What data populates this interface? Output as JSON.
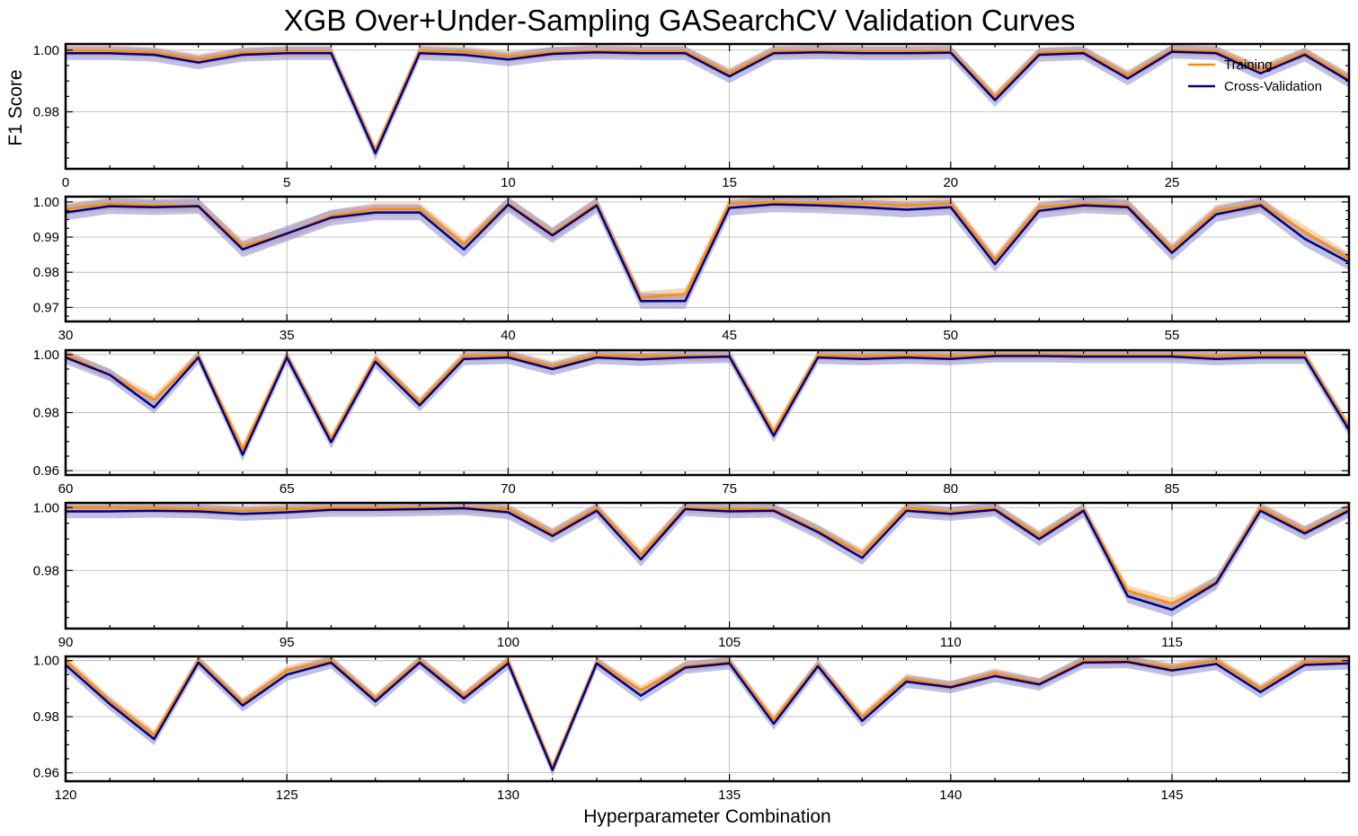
{
  "chart_data": {
    "type": "line",
    "title": "XGB Over+Under-Sampling GASearchCV Validation Curves",
    "xlabel": "Hyperparameter Combination",
    "ylabel": "F1 Score",
    "grid": true,
    "legend": {
      "position": "upper-right",
      "entries": [
        "Training",
        "Cross-Validation"
      ]
    },
    "colors": {
      "training": "#ff8c00",
      "cv": "#000080",
      "training_band": "#f4b77a",
      "cv_band": "#8c8cd0"
    },
    "series_names": [
      "Training",
      "Cross-Validation"
    ],
    "panels": [
      {
        "xlim": [
          0,
          29
        ],
        "ylim": [
          0.9615,
          1.002
        ],
        "xticks": [
          0,
          5,
          10,
          15,
          20,
          25
        ],
        "yticks": [
          0.98,
          1.0
        ],
        "yticklabels": [
          "0.98",
          "1.00"
        ],
        "x_start": 0,
        "training": [
          1.0,
          0.9998,
          0.9993,
          0.997,
          0.9992,
          0.9995,
          0.9995,
          0.9675,
          0.9998,
          0.9995,
          0.998,
          0.9993,
          0.9998,
          0.9996,
          0.9996,
          0.9925,
          0.9997,
          0.9998,
          0.9996,
          0.9996,
          0.9997,
          0.9848,
          0.9992,
          0.9996,
          0.9918,
          1.0,
          0.9997,
          0.9935,
          0.9992,
          0.991
        ],
        "cv": [
          0.999,
          0.999,
          0.9985,
          0.996,
          0.9985,
          0.999,
          0.999,
          0.9665,
          0.999,
          0.9985,
          0.997,
          0.9988,
          0.9993,
          0.999,
          0.999,
          0.9915,
          0.999,
          0.9993,
          0.999,
          0.999,
          0.9992,
          0.9838,
          0.9985,
          0.999,
          0.9908,
          0.9995,
          0.999,
          0.9925,
          0.9985,
          0.99
        ]
      },
      {
        "xlim": [
          30,
          59
        ],
        "ylim": [
          0.966,
          1.0015
        ],
        "xticks": [
          30,
          35,
          40,
          45,
          50,
          55
        ],
        "yticks": [
          0.97,
          0.98,
          0.99,
          1.0
        ],
        "yticklabels": [
          "0.97",
          "0.98",
          "0.99",
          "1.00"
        ],
        "x_start": 30,
        "training": [
          0.998,
          0.9995,
          0.999,
          0.999,
          0.9875,
          0.991,
          0.996,
          0.998,
          0.998,
          0.988,
          0.9995,
          0.991,
          0.9995,
          0.9728,
          0.9738,
          0.9995,
          1.0,
          0.9995,
          0.9995,
          0.999,
          0.9995,
          0.9835,
          0.9985,
          0.9995,
          0.999,
          0.9865,
          0.9975,
          0.9995,
          0.9915,
          0.9838
        ],
        "cv": [
          0.997,
          0.9988,
          0.9985,
          0.9988,
          0.9865,
          0.991,
          0.9955,
          0.997,
          0.997,
          0.9865,
          0.9992,
          0.9905,
          0.999,
          0.9718,
          0.9718,
          0.9983,
          0.9993,
          0.999,
          0.9985,
          0.9978,
          0.9985,
          0.9823,
          0.9975,
          0.999,
          0.9985,
          0.9855,
          0.9965,
          0.999,
          0.9895,
          0.9828
        ]
      },
      {
        "xlim": [
          60,
          89
        ],
        "ylim": [
          0.9585,
          1.0015
        ],
        "xticks": [
          60,
          65,
          70,
          75,
          80,
          85
        ],
        "yticks": [
          0.96,
          0.98,
          1.0
        ],
        "yticklabels": [
          "0.96",
          "0.98",
          "1.00"
        ],
        "x_start": 60,
        "training": [
          1.0,
          0.993,
          0.9845,
          0.9995,
          0.9675,
          0.9995,
          0.971,
          0.9985,
          0.9835,
          0.9995,
          0.9998,
          0.996,
          0.9998,
          0.9995,
          0.9995,
          0.9995,
          0.9735,
          0.9998,
          0.9995,
          0.9998,
          0.9995,
          1.0,
          1.0,
          0.9998,
          0.9998,
          0.9998,
          0.9995,
          0.9998,
          0.9998,
          0.975
        ],
        "cv": [
          0.999,
          0.993,
          0.9818,
          0.999,
          0.9655,
          0.999,
          0.9698,
          0.9975,
          0.9825,
          0.9985,
          0.999,
          0.995,
          0.999,
          0.9983,
          0.999,
          0.9993,
          0.972,
          0.999,
          0.9985,
          0.999,
          0.9985,
          0.9995,
          0.9995,
          0.9993,
          0.9993,
          0.9993,
          0.9985,
          0.999,
          0.999,
          0.974
        ]
      },
      {
        "xlim": [
          90,
          119
        ],
        "ylim": [
          0.9615,
          1.0015
        ],
        "xticks": [
          90,
          95,
          100,
          105,
          110,
          115
        ],
        "yticks": [
          0.98,
          1.0
        ],
        "yticklabels": [
          "0.98",
          "1.00"
        ],
        "x_start": 90,
        "training": [
          1.0,
          1.0,
          1.0,
          0.9995,
          0.999,
          0.9995,
          1.0,
          1.0,
          1.0,
          1.0,
          0.9995,
          0.9918,
          0.9998,
          0.985,
          1.0,
          0.9995,
          0.9995,
          0.9928,
          0.9853,
          1.0,
          0.9985,
          0.9998,
          0.991,
          0.9995,
          0.9735,
          0.9695,
          0.9763,
          1.0,
          0.9925,
          0.9995
        ],
        "cv": [
          0.9988,
          0.9988,
          0.999,
          0.9988,
          0.998,
          0.9985,
          0.9993,
          0.9993,
          0.9995,
          0.9998,
          0.9985,
          0.991,
          0.999,
          0.9835,
          0.9995,
          0.9988,
          0.999,
          0.9922,
          0.984,
          0.999,
          0.998,
          0.9993,
          0.99,
          0.999,
          0.9718,
          0.9675,
          0.976,
          0.999,
          0.9918,
          0.999
        ]
      },
      {
        "xlim": [
          120,
          149
        ],
        "ylim": [
          0.957,
          1.0015
        ],
        "xticks": [
          120,
          125,
          130,
          135,
          140,
          145
        ],
        "yticks": [
          0.96,
          0.98,
          1.0
        ],
        "yticklabels": [
          "0.96",
          "0.98",
          "1.00"
        ],
        "x_start": 120,
        "training": [
          1.0,
          0.9855,
          0.9735,
          1.0,
          0.985,
          0.9965,
          1.0,
          0.9865,
          1.0,
          0.9875,
          1.0,
          0.962,
          0.9995,
          0.9895,
          0.998,
          0.9995,
          0.979,
          0.9985,
          0.98,
          0.9935,
          0.991,
          0.9955,
          0.992,
          1.0,
          1.0,
          0.9975,
          1.0,
          0.99,
          0.9995,
          1.0
        ],
        "cv": [
          0.9985,
          0.9845,
          0.972,
          0.9993,
          0.984,
          0.995,
          0.9993,
          0.9855,
          0.9993,
          0.9865,
          0.999,
          0.961,
          0.999,
          0.9875,
          0.9975,
          0.999,
          0.9775,
          0.998,
          0.9785,
          0.9925,
          0.9905,
          0.9945,
          0.9915,
          0.9993,
          0.9995,
          0.9965,
          0.9988,
          0.9888,
          0.9985,
          0.999
        ]
      }
    ]
  }
}
